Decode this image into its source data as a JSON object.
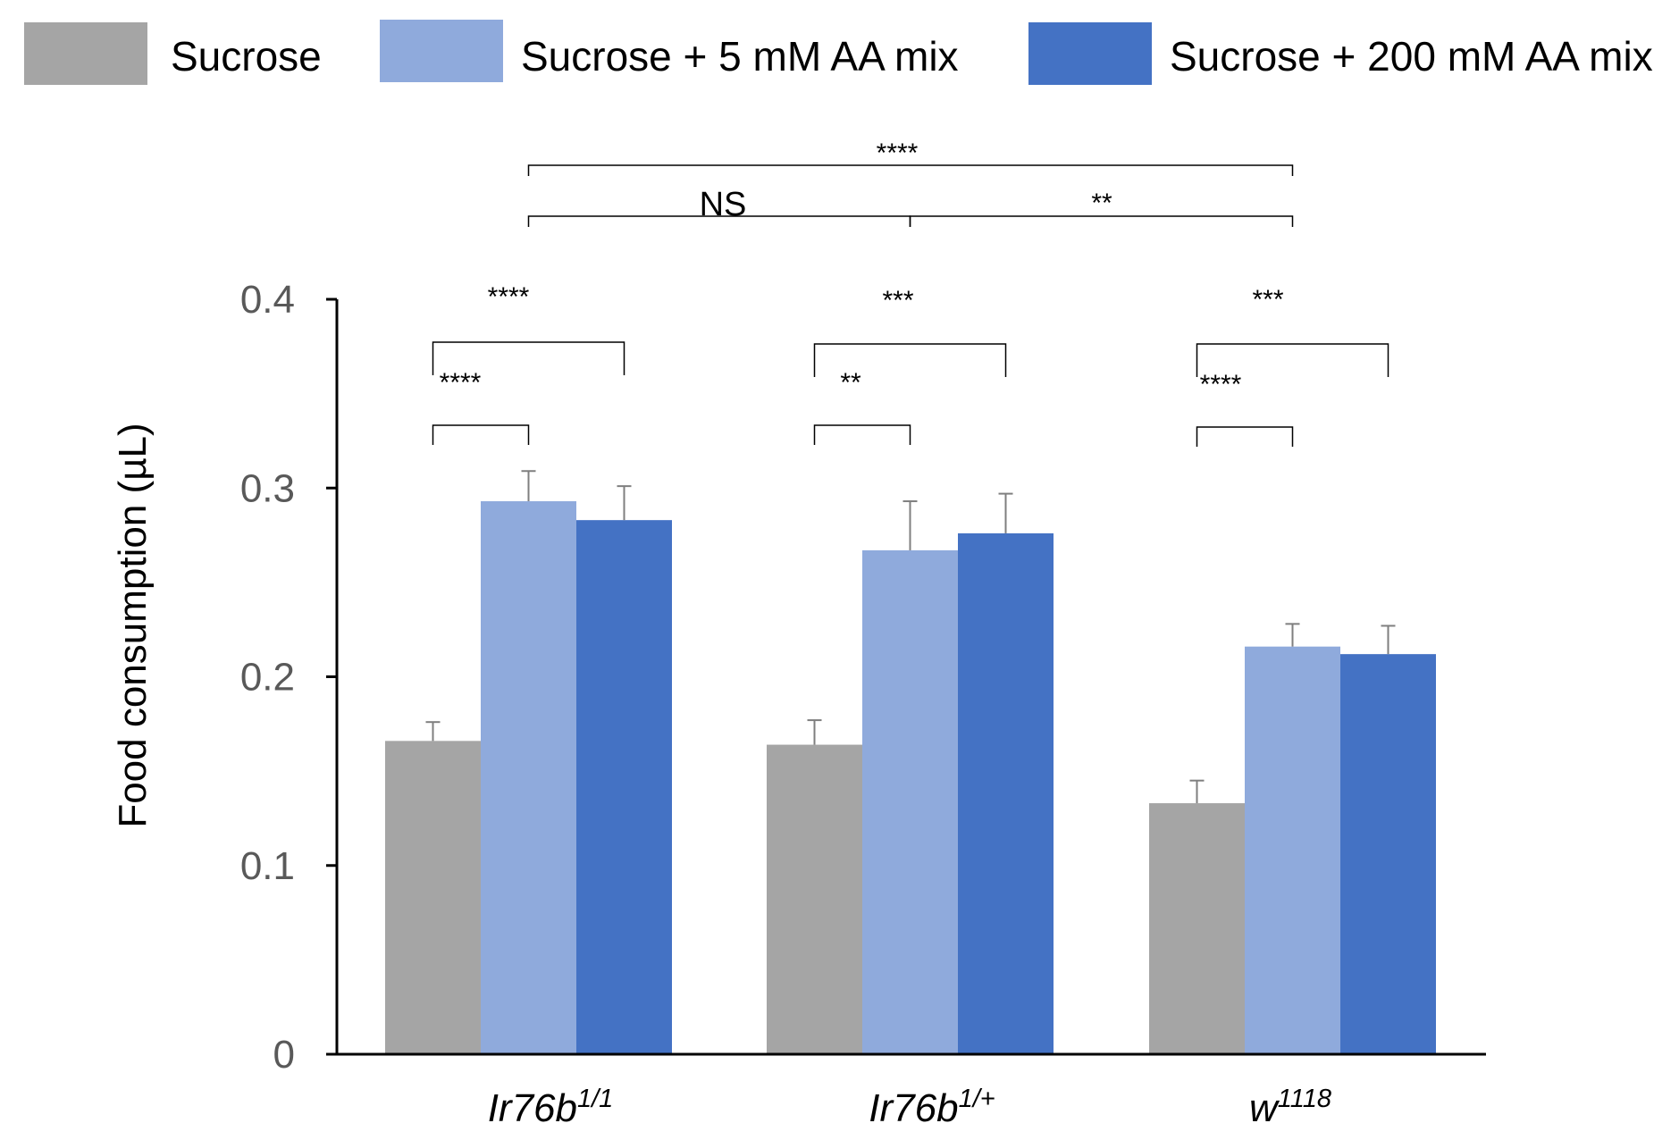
{
  "chart_data": {
    "type": "bar",
    "ylabel": "Food consumption (µL)",
    "ylim": [
      0,
      0.4
    ],
    "yticks": [
      "0",
      "0.1",
      "0.2",
      "0.3",
      "0.4"
    ],
    "categories": [
      {
        "base": "Ir76b",
        "sup": "1/1"
      },
      {
        "base": "Ir76b",
        "sup": "1/+"
      },
      {
        "base": "w",
        "sup": "1118"
      }
    ],
    "series": [
      {
        "name": "Sucrose",
        "color": "#a5a5a5",
        "values": [
          0.166,
          0.164,
          0.133
        ],
        "errors": [
          0.01,
          0.013,
          0.012
        ]
      },
      {
        "name": "Sucrose + 5 mM AA mix",
        "color": "#8faadc",
        "values": [
          0.293,
          0.267,
          0.216
        ],
        "errors": [
          0.016,
          0.026,
          0.012
        ]
      },
      {
        "name": "Sucrose + 200 mM AA mix",
        "color": "#4472c4",
        "values": [
          0.283,
          0.276,
          0.212
        ],
        "errors": [
          0.018,
          0.021,
          0.015
        ]
      }
    ],
    "legend_position": "top",
    "grid": false,
    "annotations": {
      "within_group": [
        {
          "group": 0,
          "from": 0,
          "to": 1,
          "label": "****"
        },
        {
          "group": 0,
          "from": 0,
          "to": 2,
          "label": "****"
        },
        {
          "group": 1,
          "from": 0,
          "to": 1,
          "label": "**"
        },
        {
          "group": 1,
          "from": 0,
          "to": 2,
          "label": "***"
        },
        {
          "group": 2,
          "from": 0,
          "to": 1,
          "label": "****"
        },
        {
          "group": 2,
          "from": 0,
          "to": 2,
          "label": "***"
        }
      ],
      "between_group": [
        {
          "from": 0,
          "to": 1,
          "label": "NS"
        },
        {
          "from": 1,
          "to": 2,
          "label": "**"
        },
        {
          "from": 0,
          "to": 2,
          "label": "****"
        }
      ]
    }
  }
}
